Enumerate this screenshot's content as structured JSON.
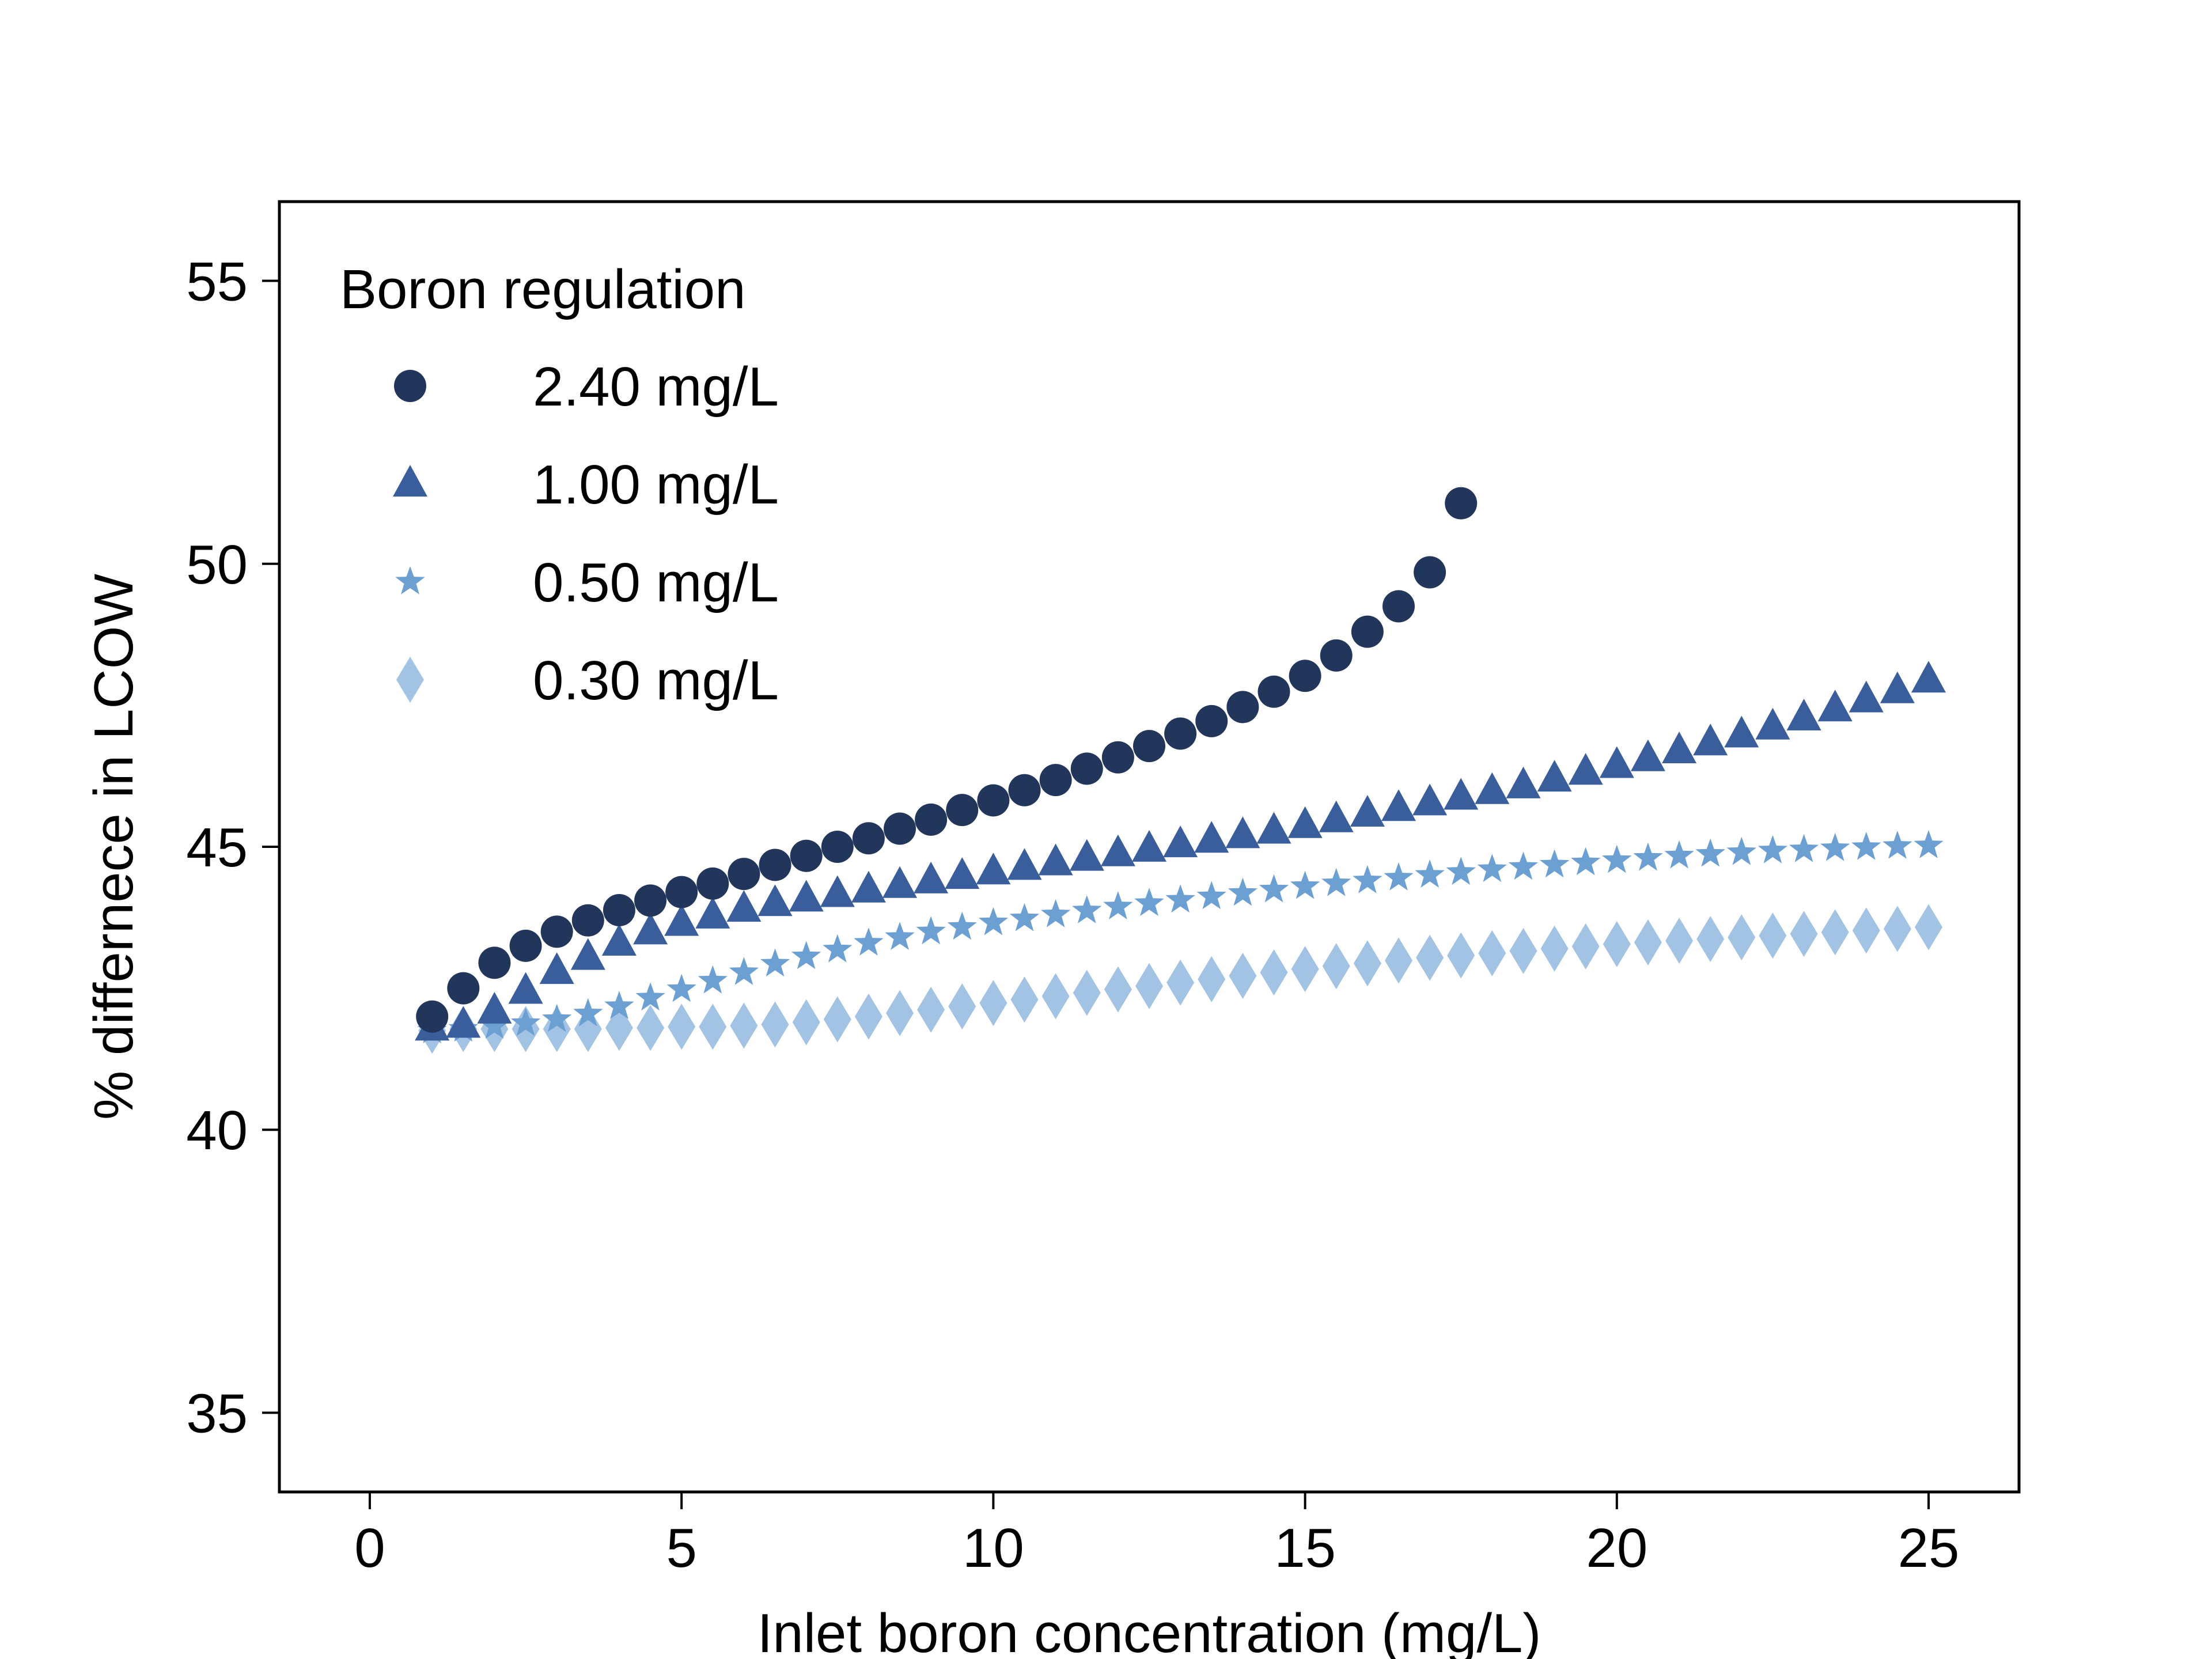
{
  "chart_data": {
    "type": "scatter",
    "title": "",
    "xlabel": "Inlet boron concentration (mg/L)",
    "ylabel": "% differnece in LCOW",
    "xlim": [
      -1.45,
      26.45
    ],
    "ylim": [
      33.6,
      56.4
    ],
    "xticks": [
      0,
      5,
      10,
      15,
      20,
      25
    ],
    "yticks": [
      35,
      40,
      45,
      50,
      55
    ],
    "grid": false,
    "legend": {
      "title": "Boron regulation",
      "placement": "top-left"
    },
    "x": [
      1,
      1.5,
      2,
      2.5,
      3,
      3.5,
      4,
      4.5,
      5,
      5.5,
      6,
      6.5,
      7,
      7.5,
      8,
      8.5,
      9,
      9.5,
      10,
      10.5,
      11,
      11.5,
      12,
      12.5,
      13,
      13.5,
      14,
      14.5,
      15,
      15.5,
      16,
      16.5,
      17,
      17.5,
      18,
      18.5,
      19,
      19.5,
      20,
      20.5,
      21,
      21.5,
      22,
      22.5,
      23,
      23.5,
      24,
      24.5,
      25
    ],
    "series": [
      {
        "name": "2.40 mg/L",
        "marker": "circle",
        "color": "#22355a",
        "values": [
          42.0,
          42.5,
          42.95,
          43.25,
          43.5,
          43.7,
          43.88,
          44.05,
          44.2,
          44.35,
          44.52,
          44.68,
          44.84,
          45.0,
          45.15,
          45.32,
          45.48,
          45.65,
          45.82,
          46.0,
          46.18,
          46.38,
          46.58,
          46.78,
          47.0,
          47.22,
          47.47,
          47.74,
          48.02,
          48.38,
          48.8,
          49.25,
          49.85,
          51.07
        ]
      },
      {
        "name": "1.00 mg/L",
        "marker": "triangle",
        "color": "#3a5e9b",
        "values": [
          41.8,
          41.85,
          42.1,
          42.45,
          42.8,
          43.05,
          43.3,
          43.5,
          43.65,
          43.78,
          43.9,
          44.0,
          44.08,
          44.16,
          44.24,
          44.32,
          44.4,
          44.48,
          44.56,
          44.64,
          44.72,
          44.8,
          44.88,
          44.96,
          45.04,
          45.12,
          45.2,
          45.28,
          45.38,
          45.48,
          45.58,
          45.68,
          45.78,
          45.88,
          45.98,
          46.08,
          46.2,
          46.32,
          46.44,
          46.56,
          46.7,
          46.84,
          46.98,
          47.12,
          47.28,
          47.44,
          47.6,
          47.76,
          47.95
        ]
      },
      {
        "name": "0.50 mg/L",
        "marker": "star",
        "color": "#6c9fd2",
        "values": [
          41.75,
          41.78,
          41.83,
          41.88,
          41.95,
          42.05,
          42.18,
          42.33,
          42.48,
          42.63,
          42.78,
          42.93,
          43.06,
          43.18,
          43.3,
          43.4,
          43.5,
          43.58,
          43.66,
          43.73,
          43.8,
          43.87,
          43.94,
          44.0,
          44.06,
          44.12,
          44.18,
          44.24,
          44.3,
          44.35,
          44.4,
          44.45,
          44.5,
          44.55,
          44.6,
          44.64,
          44.68,
          44.72,
          44.76,
          44.8,
          44.84,
          44.87,
          44.9,
          44.93,
          44.95,
          44.97,
          44.99,
          45.01,
          45.02
        ]
      },
      {
        "name": "0.30 mg/L",
        "marker": "diamond",
        "color": "#a2c3e3",
        "values": [
          41.75,
          41.78,
          41.78,
          41.78,
          41.78,
          41.78,
          41.8,
          41.8,
          41.82,
          41.82,
          41.84,
          41.86,
          41.9,
          41.95,
          42.0,
          42.06,
          42.12,
          42.18,
          42.24,
          42.3,
          42.36,
          42.42,
          42.48,
          42.54,
          42.6,
          42.66,
          42.72,
          42.78,
          42.84,
          42.89,
          42.94,
          42.99,
          43.04,
          43.08,
          43.12,
          43.16,
          43.2,
          43.24,
          43.28,
          43.31,
          43.34,
          43.37,
          43.4,
          43.43,
          43.46,
          43.49,
          43.52,
          43.55,
          43.58
        ]
      }
    ]
  }
}
